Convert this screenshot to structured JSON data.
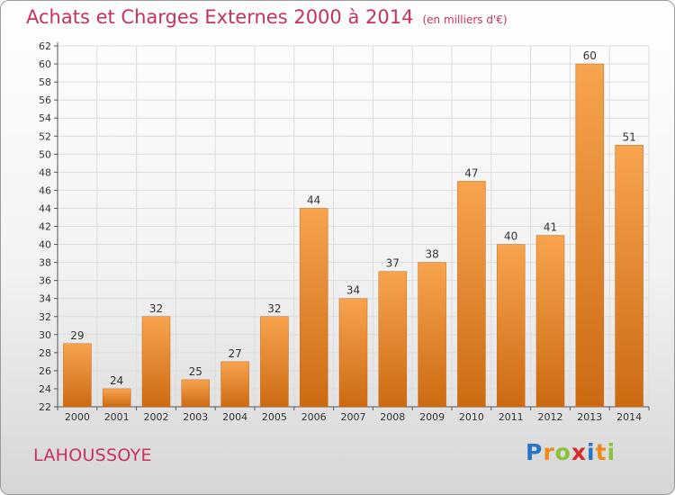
{
  "header": {
    "title": "Achats et Charges Externes 2000 à 2014",
    "subtitle": "(en milliers d'€)"
  },
  "footer": {
    "commune": "LAHOUSSOYE",
    "logo_letters": [
      "P",
      "r",
      "o",
      "x",
      "i",
      "t",
      "i"
    ],
    "logo_colors": [
      "#2b73c4",
      "#f08a1c",
      "#8ac23a",
      "#d62b2b",
      "#2b73c4",
      "#f08a1c",
      "#8ac23a"
    ]
  },
  "chart_data": {
    "type": "bar",
    "categories": [
      "2000",
      "2001",
      "2002",
      "2003",
      "2004",
      "2005",
      "2006",
      "2007",
      "2008",
      "2009",
      "2010",
      "2011",
      "2012",
      "2013",
      "2014"
    ],
    "values": [
      29,
      24,
      32,
      25,
      27,
      32,
      44,
      34,
      37,
      38,
      47,
      40,
      41,
      60,
      51
    ],
    "ylim": [
      22,
      62
    ],
    "ytick_step": 2,
    "grid": true,
    "bar_color_top": "#f7a44e",
    "bar_color_bottom": "#cc6a12"
  }
}
